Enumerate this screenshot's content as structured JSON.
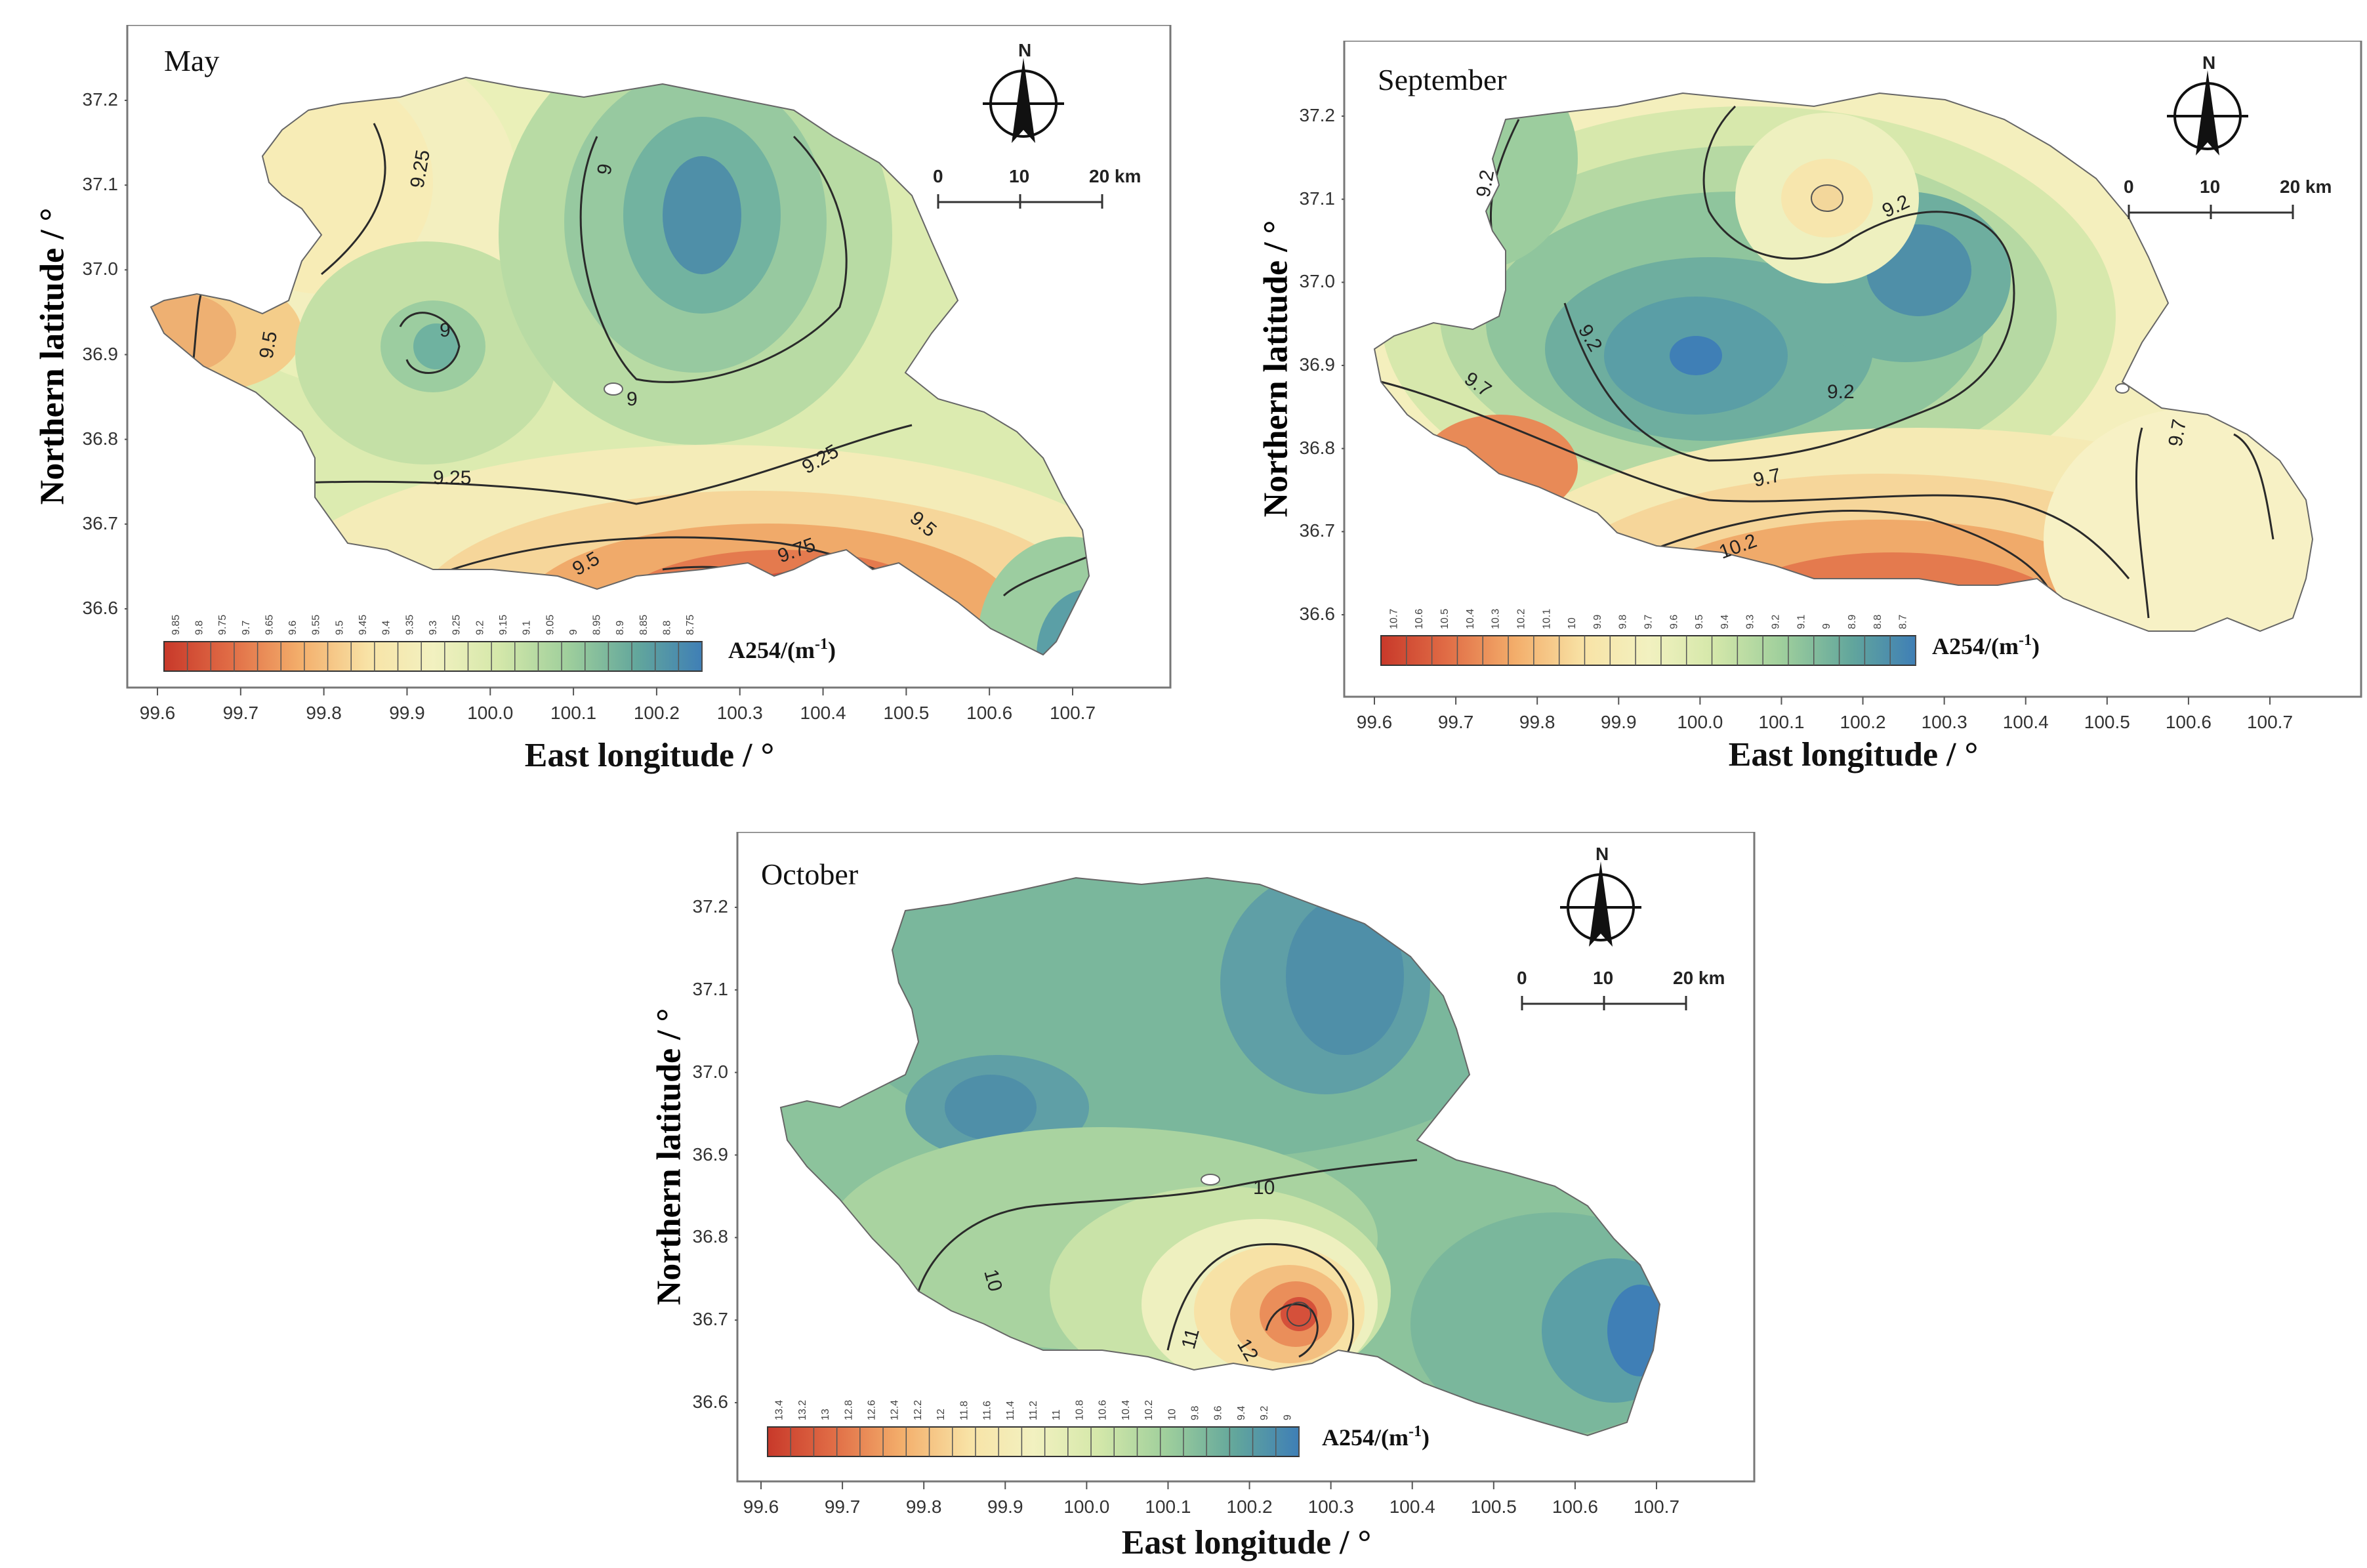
{
  "common": {
    "x_ticks": [
      "99.6",
      "99.7",
      "99.8",
      "99.9",
      "100.0",
      "100.1",
      "100.2",
      "100.3",
      "100.4",
      "100.5",
      "100.6",
      "100.7"
    ],
    "y_ticks": [
      "37.2",
      "37.1",
      "37.0",
      "36.9",
      "36.8",
      "36.7",
      "36.6"
    ],
    "xlabel": "East longitude / °",
    "ylabel": "Northern latitude / °",
    "unit_label": "A254/(m",
    "unit_sup": "-1",
    "unit_close": ")",
    "north_label": "N",
    "scale_labels": [
      "0",
      "10",
      "20 km"
    ]
  },
  "panels": [
    {
      "title": "May",
      "legend_ticks": [
        "9.85",
        "9.8",
        "9.75",
        "9.7",
        "9.65",
        "9.6",
        "9.55",
        "9.5",
        "9.45",
        "9.4",
        "9.35",
        "9.3",
        "9.25",
        "9.2",
        "9.15",
        "9.1",
        "9.05",
        "9",
        "8.95",
        "8.9",
        "8.85",
        "8.8",
        "8.75"
      ],
      "contour_labels": [
        "9.25",
        "9",
        "9",
        "9",
        "9.5",
        "9.25",
        "9.25",
        "9.5",
        "9.75",
        "9.5"
      ]
    },
    {
      "title": "September",
      "legend_ticks": [
        "10.7",
        "10.6",
        "10.5",
        "10.4",
        "10.3",
        "10.2",
        "10.1",
        "10",
        "9.9",
        "9.8",
        "9.7",
        "9.6",
        "9.5",
        "9.4",
        "9.3",
        "9.2",
        "9.1",
        "9",
        "8.9",
        "8.8",
        "8.7"
      ],
      "contour_labels": [
        "9.2",
        "9.2",
        "9.2",
        "9.7",
        "9.2",
        "9.7",
        "10.2",
        "9.7"
      ]
    },
    {
      "title": "October",
      "legend_ticks": [
        "13.4",
        "13.2",
        "13",
        "12.8",
        "12.6",
        "12.4",
        "12.2",
        "12",
        "11.8",
        "11.6",
        "11.4",
        "11.2",
        "11",
        "10.8",
        "10.6",
        "10.4",
        "10.2",
        "10",
        "9.8",
        "9.6",
        "9.4",
        "9.2",
        "9"
      ],
      "contour_labels": [
        "10",
        "10",
        "11",
        "12"
      ]
    }
  ],
  "colors": {
    "ramp": [
      "#c8392a",
      "#d9533a",
      "#e8774f",
      "#f1a064",
      "#f6c883",
      "#f8e3a6",
      "#f7f0bd",
      "#e9eeb5",
      "#cfe5a8",
      "#afd69f",
      "#90c69b",
      "#75b59a",
      "#5fa29c",
      "#4f8fa8",
      "#3f7fb6"
    ]
  }
}
